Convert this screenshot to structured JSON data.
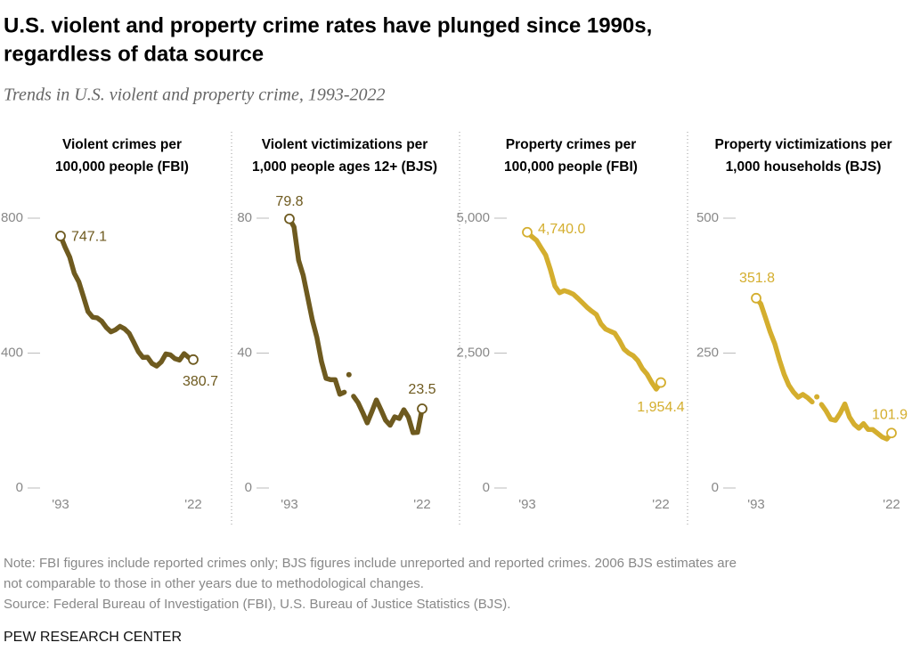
{
  "title": [
    "U.S. violent and property crime rates have plunged since 1990s,",
    "regardless of data source"
  ],
  "subtitle": "Trends in U.S. violent and property crime, 1993-2022",
  "note": [
    "Note: FBI figures include reported crimes only; BJS figures include unreported and reported crimes. 2006 BJS estimates are",
    "not comparable to those in other years due to methodological changes."
  ],
  "source": "Source: Federal Bureau of Investigation (FBI), U.S. Bureau of Justice Statistics (BJS).",
  "brand": "PEW RESEARCH CENTER",
  "chart_data": [
    {
      "type": "line",
      "title": [
        "Violent crimes per",
        "100,000 people (FBI)"
      ],
      "color": "#6e5a1f",
      "x": [
        1993,
        1994,
        1995,
        1996,
        1997,
        1998,
        1999,
        2000,
        2001,
        2002,
        2003,
        2004,
        2005,
        2006,
        2007,
        2008,
        2009,
        2010,
        2011,
        2012,
        2013,
        2014,
        2015,
        2016,
        2017,
        2018,
        2019,
        2020,
        2021,
        2022
      ],
      "values": [
        747.1,
        713.6,
        684.5,
        636.6,
        611.0,
        567.6,
        523.0,
        506.5,
        504.5,
        494.4,
        475.8,
        463.2,
        469.0,
        479.3,
        471.8,
        458.6,
        431.9,
        404.5,
        387.1,
        387.8,
        369.1,
        361.6,
        373.7,
        397.5,
        394.9,
        383.4,
        379.4,
        398.5,
        387.0,
        380.7
      ],
      "xlim": [
        1993,
        2022
      ],
      "xticks": [
        {
          "value": 1993,
          "label": "'93"
        },
        {
          "value": 2022,
          "label": "'22"
        }
      ],
      "ylim": [
        0,
        800
      ],
      "yticks": [
        0,
        400,
        800
      ]
    },
    {
      "type": "line",
      "title": [
        "Violent victimizations per",
        "1,000 people ages 12+ (BJS)"
      ],
      "color": "#6e5a1f",
      "x": [
        1993,
        1994,
        1995,
        1996,
        1997,
        1998,
        1999,
        2000,
        2001,
        2002,
        2003,
        2004,
        2005,
        2006,
        2007,
        2008,
        2009,
        2010,
        2011,
        2012,
        2013,
        2014,
        2015,
        2016,
        2017,
        2018,
        2019,
        2020,
        2021,
        2022
      ],
      "values": [
        79.8,
        77.4,
        67.5,
        63.1,
        56.5,
        49.8,
        44.6,
        37.5,
        32.5,
        32.1,
        32.1,
        27.8,
        28.4,
        33.6,
        27.2,
        25.3,
        22.4,
        19.3,
        22.6,
        26.1,
        23.2,
        20.1,
        18.6,
        21.1,
        20.6,
        23.2,
        21.0,
        16.4,
        16.5,
        23.5
      ],
      "disconnected": [
        2006
      ],
      "xlim": [
        1993,
        2022
      ],
      "xticks": [
        {
          "value": 1993,
          "label": "'93"
        },
        {
          "value": 2022,
          "label": "'22"
        }
      ],
      "ylim": [
        0,
        80
      ],
      "yticks": [
        0,
        40,
        80
      ]
    },
    {
      "type": "line",
      "title": [
        "Property crimes per",
        "100,000 people (FBI)"
      ],
      "color": "#d4ae2e",
      "x": [
        1993,
        1994,
        1995,
        1996,
        1997,
        1998,
        1999,
        2000,
        2001,
        2002,
        2003,
        2004,
        2005,
        2006,
        2007,
        2008,
        2009,
        2010,
        2011,
        2012,
        2013,
        2014,
        2015,
        2016,
        2017,
        2018,
        2019,
        2020,
        2021,
        2022
      ],
      "values": [
        4740.0,
        4660.2,
        4590.5,
        4451.0,
        4316.3,
        4052.5,
        3743.6,
        3618.3,
        3658.1,
        3630.6,
        3591.2,
        3514.1,
        3431.5,
        3346.6,
        3276.4,
        3214.6,
        3041.3,
        2945.9,
        2905.4,
        2868.0,
        2733.6,
        2574.1,
        2500.5,
        2451.6,
        2362.2,
        2209.8,
        2109.9,
        1958.2,
        1832.3,
        1954.4
      ],
      "value_labels": [
        "4,740.0",
        null,
        null,
        null,
        null,
        null,
        null,
        null,
        null,
        null,
        null,
        null,
        null,
        null,
        null,
        null,
        null,
        null,
        null,
        null,
        null,
        null,
        null,
        null,
        null,
        null,
        null,
        null,
        null,
        "1,954.4"
      ],
      "xlim": [
        1993,
        2022
      ],
      "xticks": [
        {
          "value": 1993,
          "label": "'93"
        },
        {
          "value": 2022,
          "label": "'22"
        }
      ],
      "ylim": [
        0,
        5000
      ],
      "yticks": [
        0,
        {
          "value": 2500,
          "label": "2,500"
        },
        {
          "value": 5000,
          "label": "5,000"
        }
      ]
    },
    {
      "type": "line",
      "title": [
        "Property victimizations per",
        "1,000 households (BJS)"
      ],
      "color": "#d4ae2e",
      "x": [
        1993,
        1994,
        1995,
        1996,
        1997,
        1998,
        1999,
        2000,
        2001,
        2002,
        2003,
        2004,
        2005,
        2006,
        2007,
        2008,
        2009,
        2010,
        2011,
        2012,
        2013,
        2014,
        2015,
        2016,
        2017,
        2018,
        2019,
        2020,
        2021,
        2022
      ],
      "values": [
        351.8,
        341.2,
        315.5,
        289.3,
        267.1,
        237.1,
        210.6,
        190.4,
        177.7,
        168.2,
        173.4,
        167.5,
        159.5,
        169.0,
        154.8,
        142.6,
        127.4,
        125.4,
        138.7,
        155.8,
        131.4,
        118.1,
        110.7,
        119.4,
        108.4,
        108.2,
        101.4,
        94.5,
        90.8,
        101.9
      ],
      "disconnected": [
        2006
      ],
      "xlim": [
        1993,
        2022
      ],
      "xticks": [
        {
          "value": 1993,
          "label": "'93"
        },
        {
          "value": 2022,
          "label": "'22"
        }
      ],
      "ylim": [
        0,
        500
      ],
      "yticks": [
        0,
        250,
        500
      ]
    }
  ]
}
